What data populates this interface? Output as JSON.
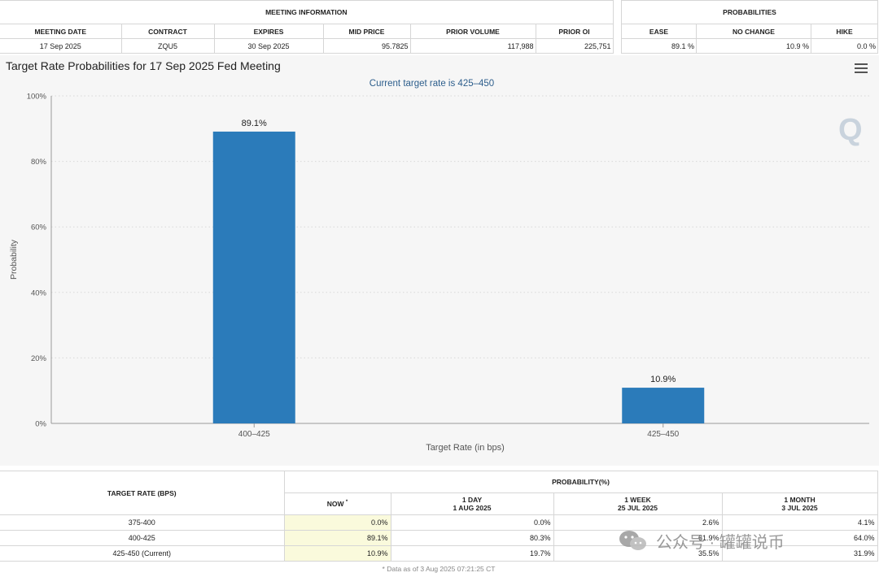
{
  "meeting_info": {
    "title": "MEETING INFORMATION",
    "headers": [
      "MEETING DATE",
      "CONTRACT",
      "EXPIRES",
      "MID PRICE",
      "PRIOR VOLUME",
      "PRIOR OI"
    ],
    "values": [
      "17 Sep 2025",
      "ZQU5",
      "30 Sep 2025",
      "95.7825",
      "117,988",
      "225,751"
    ]
  },
  "probabilities": {
    "title": "PROBABILITIES",
    "headers": [
      "EASE",
      "NO CHANGE",
      "HIKE"
    ],
    "values": [
      "89.1 %",
      "10.9 %",
      "0.0 %"
    ]
  },
  "chart_title": "Target Rate Probabilities for 17 Sep 2025 Fed Meeting",
  "chart_data": {
    "type": "bar",
    "title": "Target Rate Probabilities for 17 Sep 2025 Fed Meeting",
    "subtitle": "Current target rate is 425–450",
    "categories": [
      "400–425",
      "425–450"
    ],
    "values": [
      89.1,
      10.9
    ],
    "data_labels": [
      "89.1%",
      "10.9%"
    ],
    "xlabel": "Target Rate (in bps)",
    "ylabel": "Probability",
    "ylim": [
      0,
      100
    ],
    "yticks": [
      0,
      20,
      40,
      60,
      80,
      100
    ],
    "ytick_labels": [
      "0%",
      "20%",
      "40%",
      "60%",
      "80%",
      "100%"
    ],
    "grid": true,
    "bar_color": "#2b7bba"
  },
  "bottom_table": {
    "target_rate_header": "TARGET RATE (BPS)",
    "probability_header": "PROBABILITY(%)",
    "columns": [
      {
        "line1": "NOW",
        "line2": ""
      },
      {
        "line1": "1 DAY",
        "line2": "1 AUG 2025"
      },
      {
        "line1": "1 WEEK",
        "line2": "25 JUL 2025"
      },
      {
        "line1": "1 MONTH",
        "line2": "3 JUL 2025"
      }
    ],
    "now_marker": "*",
    "rows": [
      {
        "rate": "375-400",
        "values": [
          "0.0%",
          "0.0%",
          "2.6%",
          "4.1%"
        ]
      },
      {
        "rate": "400-425",
        "values": [
          "89.1%",
          "80.3%",
          "61.9%",
          "64.0%"
        ]
      },
      {
        "rate": "425-450 (Current)",
        "values": [
          "10.9%",
          "19.7%",
          "35.5%",
          "31.9%"
        ]
      }
    ],
    "footnote": "* Data as of 3 Aug 2025 07:21:25 CT"
  },
  "watermark": {
    "text": "公众号 · 罐罐说币",
    "icon": "wechat-icon"
  },
  "logo": "Q"
}
